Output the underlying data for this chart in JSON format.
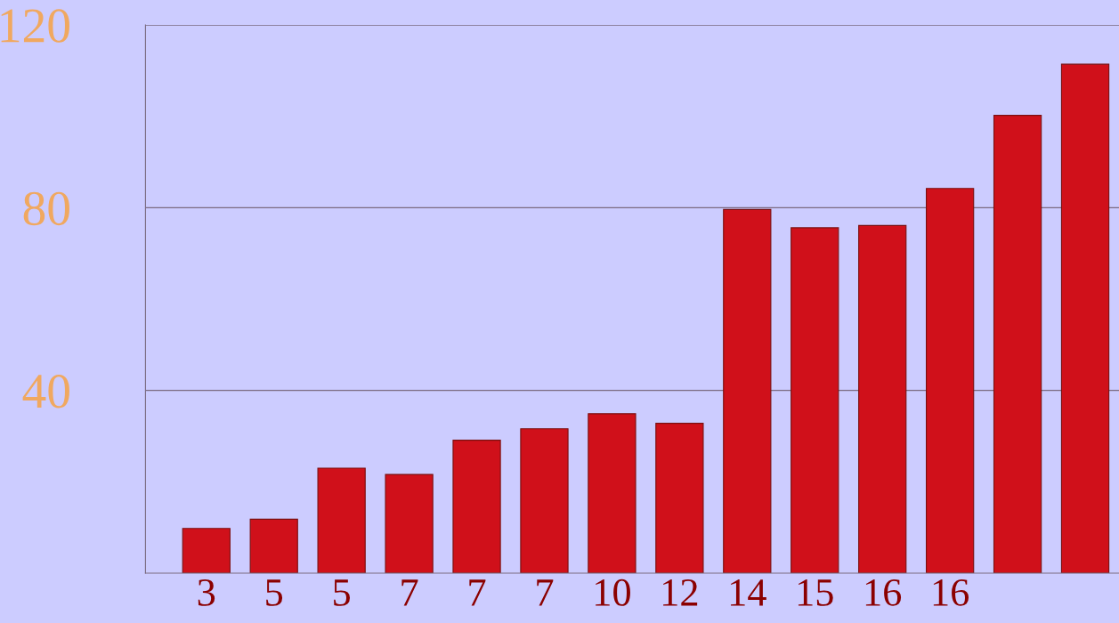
{
  "chart_data": {
    "type": "bar",
    "categories": [
      "3",
      "5",
      "5",
      "7",
      "7",
      "7",
      "10",
      "12",
      "14",
      "15",
      "16",
      "16",
      null,
      null
    ],
    "values": [
      9.8,
      11.8,
      23,
      21.6,
      29.1,
      31.6,
      34.9,
      32.8,
      79.6,
      75.6,
      76.1,
      84.2,
      100.2,
      111.4
    ],
    "color": "#d0101a",
    "ylim": [
      0,
      120
    ],
    "yticks": [
      40,
      80,
      120
    ],
    "grid": "y"
  }
}
